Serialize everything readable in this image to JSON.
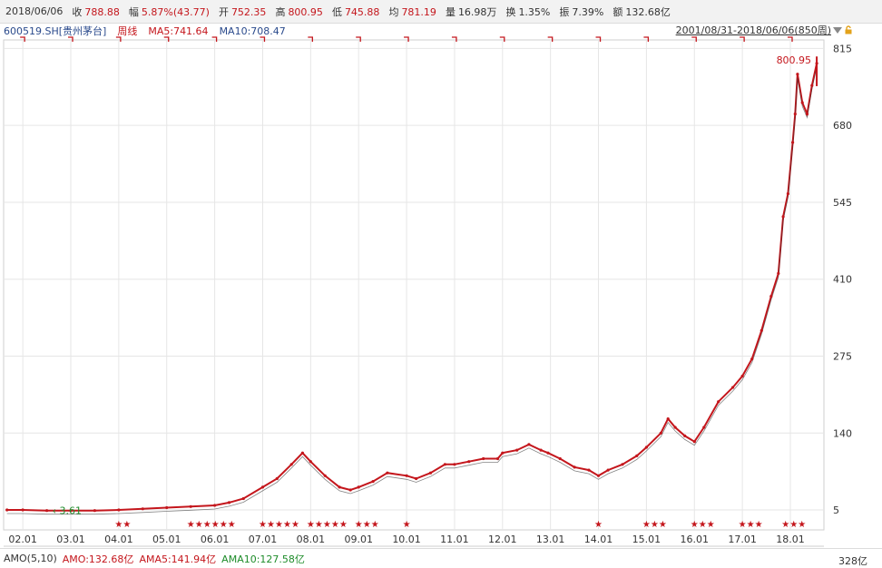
{
  "header": {
    "date": "2018/06/06",
    "close_label": "收",
    "close": "788.88",
    "change_label": "幅",
    "change": "5.87%(43.77)",
    "open_label": "开",
    "open": "752.35",
    "high_label": "高",
    "high": "800.95",
    "low_label": "低",
    "low": "745.88",
    "avg_label": "均",
    "avg": "781.19",
    "volume_label": "量",
    "volume": "16.98万",
    "turnover_label": "换",
    "turnover": "1.35%",
    "amplitude_label": "振",
    "amplitude": "7.39%",
    "amount_label": "额",
    "amount": "132.68亿"
  },
  "legend": {
    "symbol": "600519.SH",
    "name": "[贵州茅台]",
    "period": "周线",
    "ma5": "MA5:741.64",
    "ma10": "MA10:708.47"
  },
  "range_text": "2001/08/31-2018/06/06(850周)",
  "footer": {
    "indicator": "AMO(5,10)",
    "amo": "AMO:132.68亿",
    "ama5": "AMA5:141.94亿",
    "ama10": "AMA10:127.58亿",
    "vol_unit": "328亿"
  },
  "colors": {
    "up": "#c4161c",
    "down": "#1e8c2a",
    "ma5": "#333333",
    "ma10": "#c4161c",
    "grid": "#e6e6e6"
  },
  "chart_data": {
    "type": "line",
    "y_ticks": [
      5,
      140,
      275,
      410,
      545,
      680,
      815
    ],
    "ylim": [
      -30,
      830
    ],
    "x_ticks": [
      "02.01",
      "03.01",
      "04.01",
      "05.01",
      "06.01",
      "07.01",
      "08.01",
      "09.01",
      "10.01",
      "11.01",
      "12.01",
      "13.01",
      "14.01",
      "15.01",
      "16.01",
      "17.01",
      "18.01"
    ],
    "xlim": [
      2001.6,
      2018.7
    ],
    "annotations": {
      "high_label": "800.95",
      "low_label": "3.61"
    },
    "series": [
      {
        "values": [
          [
            2001.67,
            5
          ],
          [
            2002.0,
            5
          ],
          [
            2002.5,
            4
          ],
          [
            2003.0,
            4
          ],
          [
            2003.5,
            4
          ],
          [
            2004.0,
            5
          ],
          [
            2004.5,
            7
          ],
          [
            2005.0,
            9
          ],
          [
            2005.5,
            11
          ],
          [
            2006.0,
            13
          ],
          [
            2006.3,
            18
          ],
          [
            2006.6,
            25
          ],
          [
            2007.0,
            45
          ],
          [
            2007.3,
            60
          ],
          [
            2007.6,
            85
          ],
          [
            2007.83,
            105
          ],
          [
            2008.0,
            90
          ],
          [
            2008.3,
            65
          ],
          [
            2008.6,
            45
          ],
          [
            2008.83,
            40
          ],
          [
            2009.0,
            45
          ],
          [
            2009.3,
            55
          ],
          [
            2009.6,
            70
          ],
          [
            2010.0,
            65
          ],
          [
            2010.2,
            60
          ],
          [
            2010.5,
            70
          ],
          [
            2010.8,
            85
          ],
          [
            2011.0,
            85
          ],
          [
            2011.3,
            90
          ],
          [
            2011.6,
            95
          ],
          [
            2011.9,
            95
          ],
          [
            2012.0,
            105
          ],
          [
            2012.3,
            110
          ],
          [
            2012.55,
            120
          ],
          [
            2012.8,
            110
          ],
          [
            2012.95,
            105
          ],
          [
            2013.2,
            95
          ],
          [
            2013.5,
            80
          ],
          [
            2013.8,
            75
          ],
          [
            2014.0,
            65
          ],
          [
            2014.2,
            75
          ],
          [
            2014.5,
            85
          ],
          [
            2014.8,
            100
          ],
          [
            2015.0,
            115
          ],
          [
            2015.3,
            140
          ],
          [
            2015.45,
            165
          ],
          [
            2015.6,
            150
          ],
          [
            2015.8,
            135
          ],
          [
            2016.0,
            125
          ],
          [
            2016.2,
            150
          ],
          [
            2016.5,
            195
          ],
          [
            2016.8,
            220
          ],
          [
            2017.0,
            240
          ],
          [
            2017.2,
            270
          ],
          [
            2017.4,
            320
          ],
          [
            2017.6,
            380
          ],
          [
            2017.75,
            420
          ],
          [
            2017.85,
            520
          ],
          [
            2017.95,
            560
          ],
          [
            2018.05,
            650
          ],
          [
            2018.1,
            700
          ],
          [
            2018.15,
            770
          ],
          [
            2018.25,
            720
          ],
          [
            2018.35,
            700
          ],
          [
            2018.45,
            750
          ],
          [
            2018.55,
            788.88
          ]
        ]
      }
    ],
    "event_marker_rows": [
      [
        2004.0,
        2004.2
      ],
      [
        2005.5,
        2006.5
      ],
      [
        2007.0,
        2007.8
      ],
      [
        2008.0,
        2008.8
      ],
      [
        2009.0,
        2009.5
      ],
      [
        2010.0,
        2010.1
      ],
      [
        2014.0,
        2014.1
      ],
      [
        2015.0,
        2015.5
      ],
      [
        2016.0,
        2016.5
      ],
      [
        2017.0,
        2017.5
      ],
      [
        2017.9,
        2018.3
      ]
    ]
  }
}
